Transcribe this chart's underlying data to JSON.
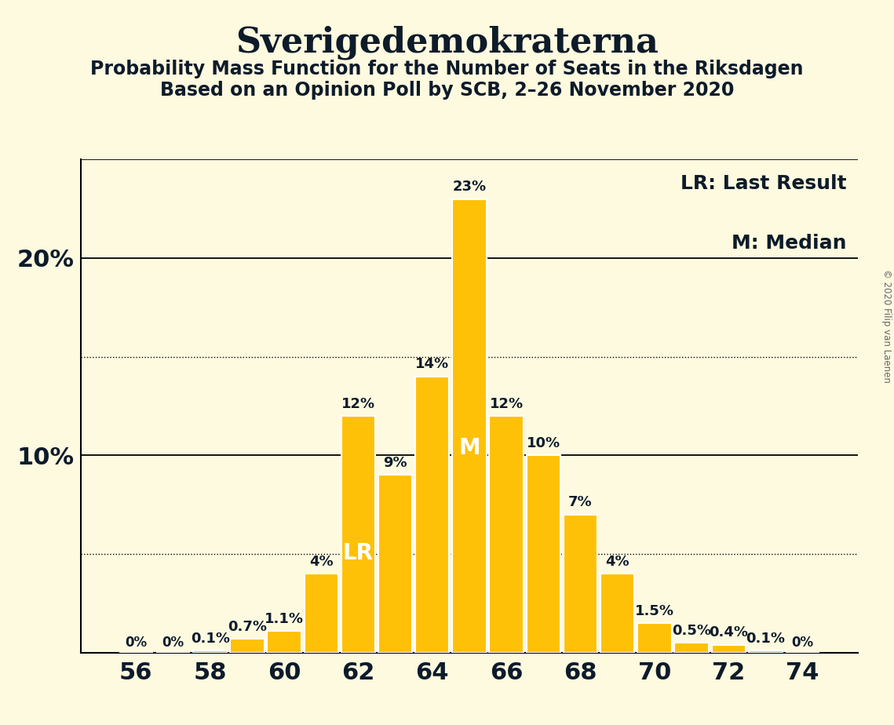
{
  "title": "Sverigedemokraterna",
  "subtitle1": "Probability Mass Function for the Number of Seats in the Riksdagen",
  "subtitle2": "Based on an Opinion Poll by SCB, 2–26 November 2020",
  "copyright": "© 2020 Filip van Laenen",
  "seats": [
    56,
    57,
    58,
    59,
    60,
    61,
    62,
    63,
    64,
    65,
    66,
    67,
    68,
    69,
    70,
    71,
    72,
    73,
    74
  ],
  "values": [
    0.0,
    0.0,
    0.1,
    0.7,
    1.1,
    4.0,
    12.0,
    9.0,
    14.0,
    23.0,
    12.0,
    10.0,
    7.0,
    4.0,
    1.5,
    0.5,
    0.4,
    0.1,
    0.0
  ],
  "labels": [
    "0%",
    "0%",
    "0.1%",
    "0.7%",
    "1.1%",
    "4%",
    "12%",
    "9%",
    "14%",
    "23%",
    "12%",
    "10%",
    "7%",
    "4%",
    "1.5%",
    "0.5%",
    "0.4%",
    "0.1%",
    "0%"
  ],
  "bar_color": "#FFC107",
  "background_color": "#FEFAE0",
  "lr_seat": 62,
  "median_seat": 65,
  "lr_label": "LR",
  "median_label": "M",
  "legend_lr": "LR: Last Result",
  "legend_m": "M: Median",
  "ylim": [
    0,
    25
  ],
  "solid_gridlines": [
    10.0,
    20.0
  ],
  "dotted_gridlines": [
    5.0,
    15.0
  ],
  "title_fontsize": 32,
  "subtitle_fontsize": 17,
  "axis_tick_fontsize": 22,
  "bar_label_fontsize": 13,
  "legend_fontsize": 18,
  "inbar_label_fontsize": 20,
  "text_color": "#0d1b2a"
}
